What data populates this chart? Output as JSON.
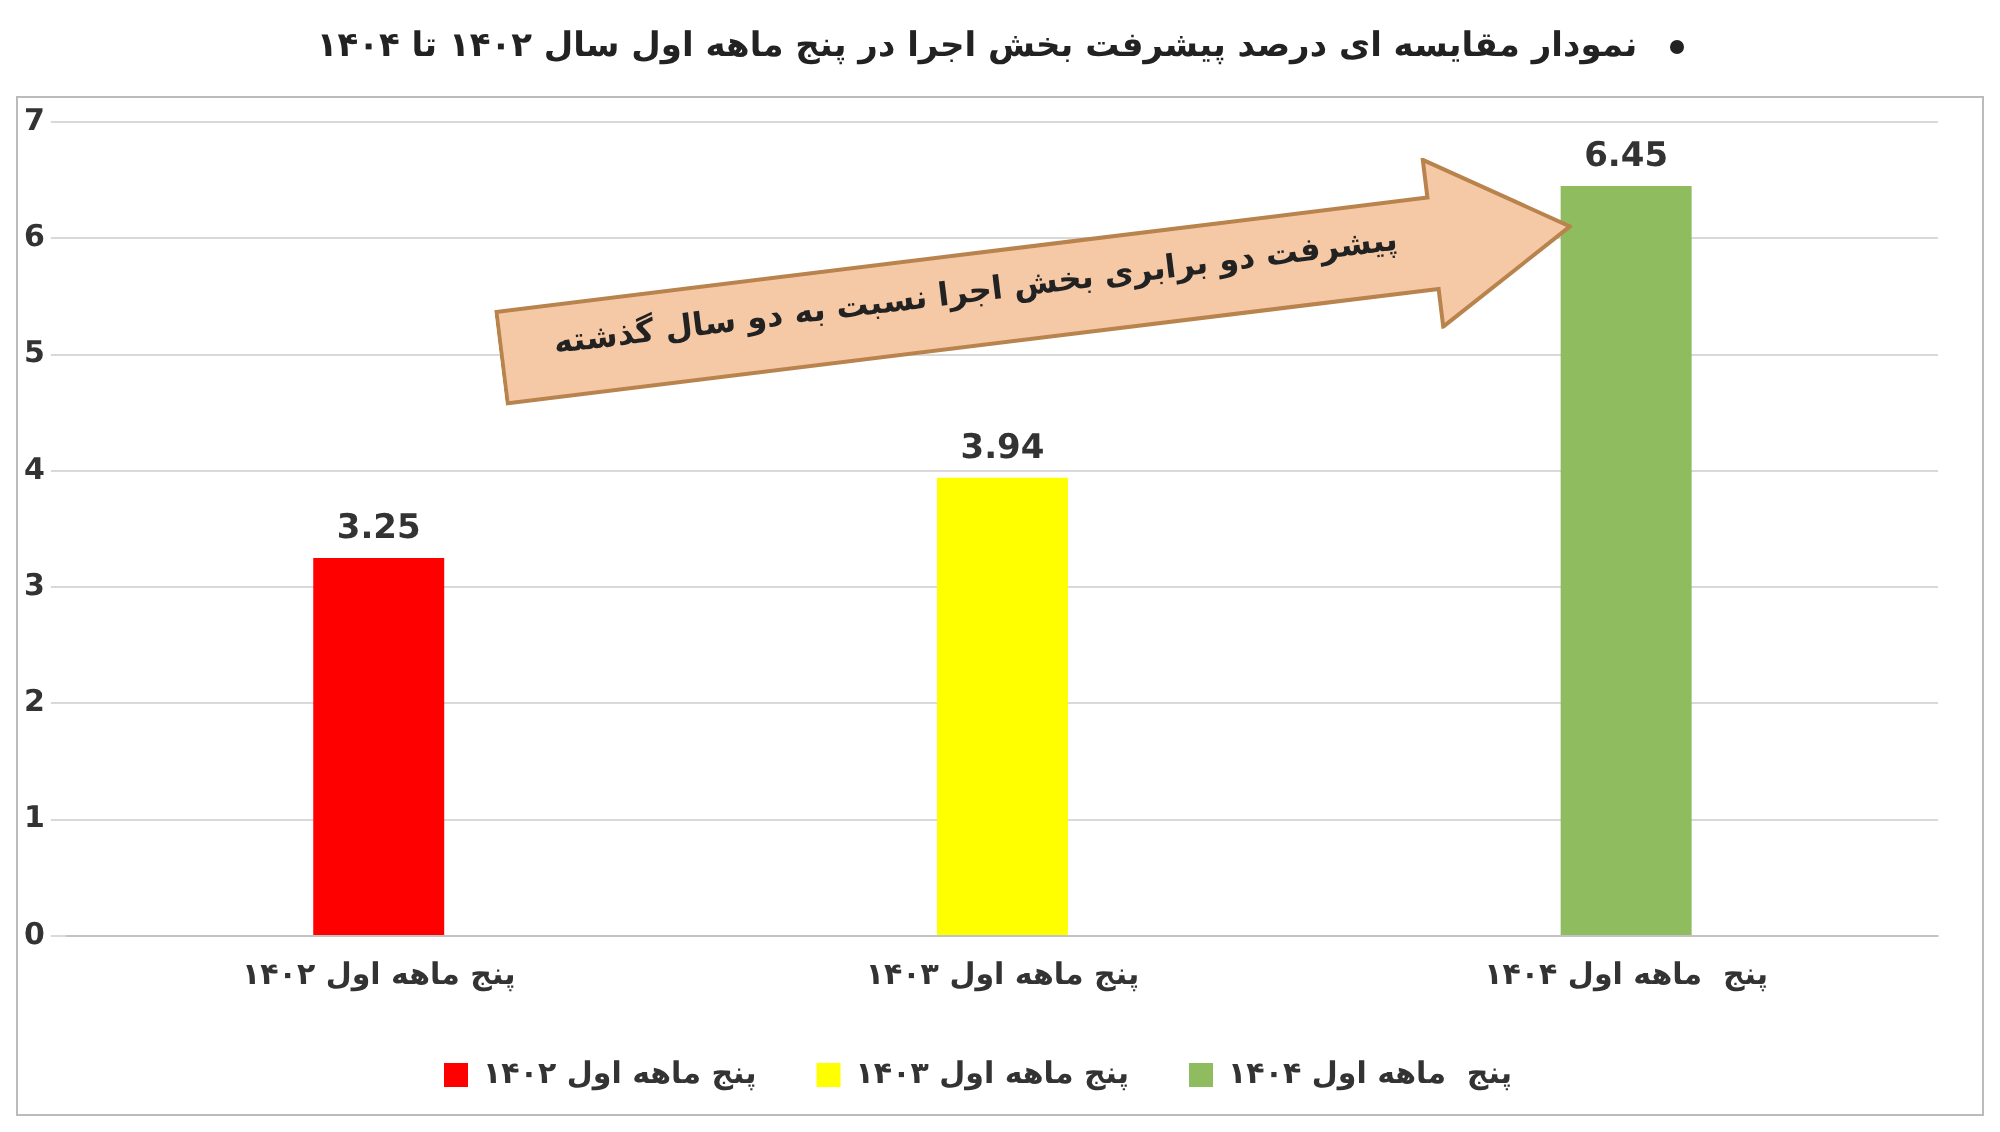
{
  "chart_data": {
    "type": "bar",
    "title": "نمودار مقایسه ای درصد پیشرفت بخش اجرا در پنج ماهه  اول سال ۱۴۰۲ تا ۱۴۰۴",
    "categories": [
      "پنج ماهه اول ۱۴۰۲",
      "پنج ماهه اول ۱۴۰۳",
      "پنج  ماهه اول ۱۴۰۴"
    ],
    "series": [
      {
        "name": "پنج ماهه اول ۱۴۰۲",
        "color": "#ff0000",
        "values": [
          3.25,
          null,
          null
        ]
      },
      {
        "name": "پنج ماهه اول ۱۴۰۳",
        "color": "#ffff00",
        "values": [
          null,
          3.94,
          null
        ]
      },
      {
        "name": "پنج  ماهه اول ۱۴۰۴",
        "color": "#8fbc5f",
        "values": [
          null,
          null,
          6.45
        ]
      }
    ],
    "ylim": [
      0,
      7
    ],
    "yticks": [
      0,
      1,
      2,
      3,
      4,
      5,
      6,
      7
    ],
    "grid": "y",
    "legend": "bottom",
    "data_labels": true,
    "annotations": [
      "پیشرفت دو برابری بخش اجرا نسبت به دو سال گذشته"
    ]
  }
}
